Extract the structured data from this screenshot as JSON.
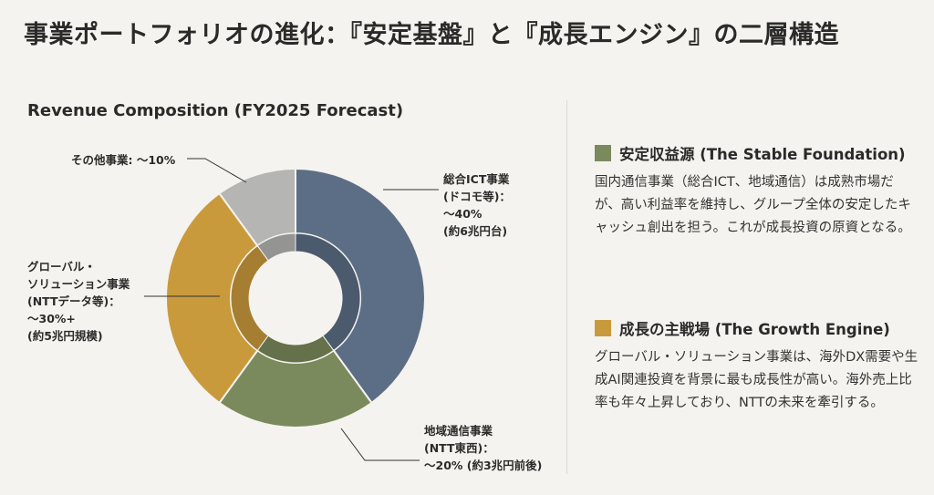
{
  "page_title": "事業ポートフォリオの進化：『安定基盤』と『成長エンジン』の二層構造",
  "chart_data": {
    "type": "pie",
    "subtype": "donut",
    "title": "Revenue Composition (FY2025 Forecast)",
    "categories": [
      "総合ICT事業",
      "地域通信事業",
      "グローバル・ソリューション事業",
      "その他事業"
    ],
    "values": [
      40,
      20,
      30,
      10
    ],
    "unit": "%",
    "labels": [
      {
        "category": "総合ICT事業",
        "text": "総合ICT事業\n(ドコモ等)：\n～40%\n(約6兆円台)",
        "color": "#5c6e85"
      },
      {
        "category": "地域通信事業",
        "text": "地域通信事業\n(NTT東西)：\n～20% (約3兆円前後)",
        "color": "#7a8a5c"
      },
      {
        "category": "グローバル・ソリューション事業",
        "text": "グローバル・\nソリューション事業\n(NTTデータ等)：\n～30%+\n(約5兆円規模)",
        "color": "#c99a3c"
      },
      {
        "category": "その他事業",
        "text": "その他事業: ～10%",
        "color": "#b5b5b3"
      }
    ],
    "inner_ring": "darker shade of each segment"
  },
  "sections": [
    {
      "title": "安定収益源 (The Stable Foundation)",
      "color": "#7a8a5c",
      "body": "国内通信事業（総合ICT、地域通信）は成熟市場だが、高い利益率を維持し、グループ全体の安定したキャッシュ創出を担う。これが成長投資の原資となる。"
    },
    {
      "title": "成長の主戦場 (The Growth Engine)",
      "color": "#c99a3c",
      "body": "グローバル・ソリューション事業は、海外DX需要や生成AI関連投資を背景に最も成長性が高い。海外売上比率も年々上昇しており、NTTの未来を牽引する。"
    }
  ]
}
